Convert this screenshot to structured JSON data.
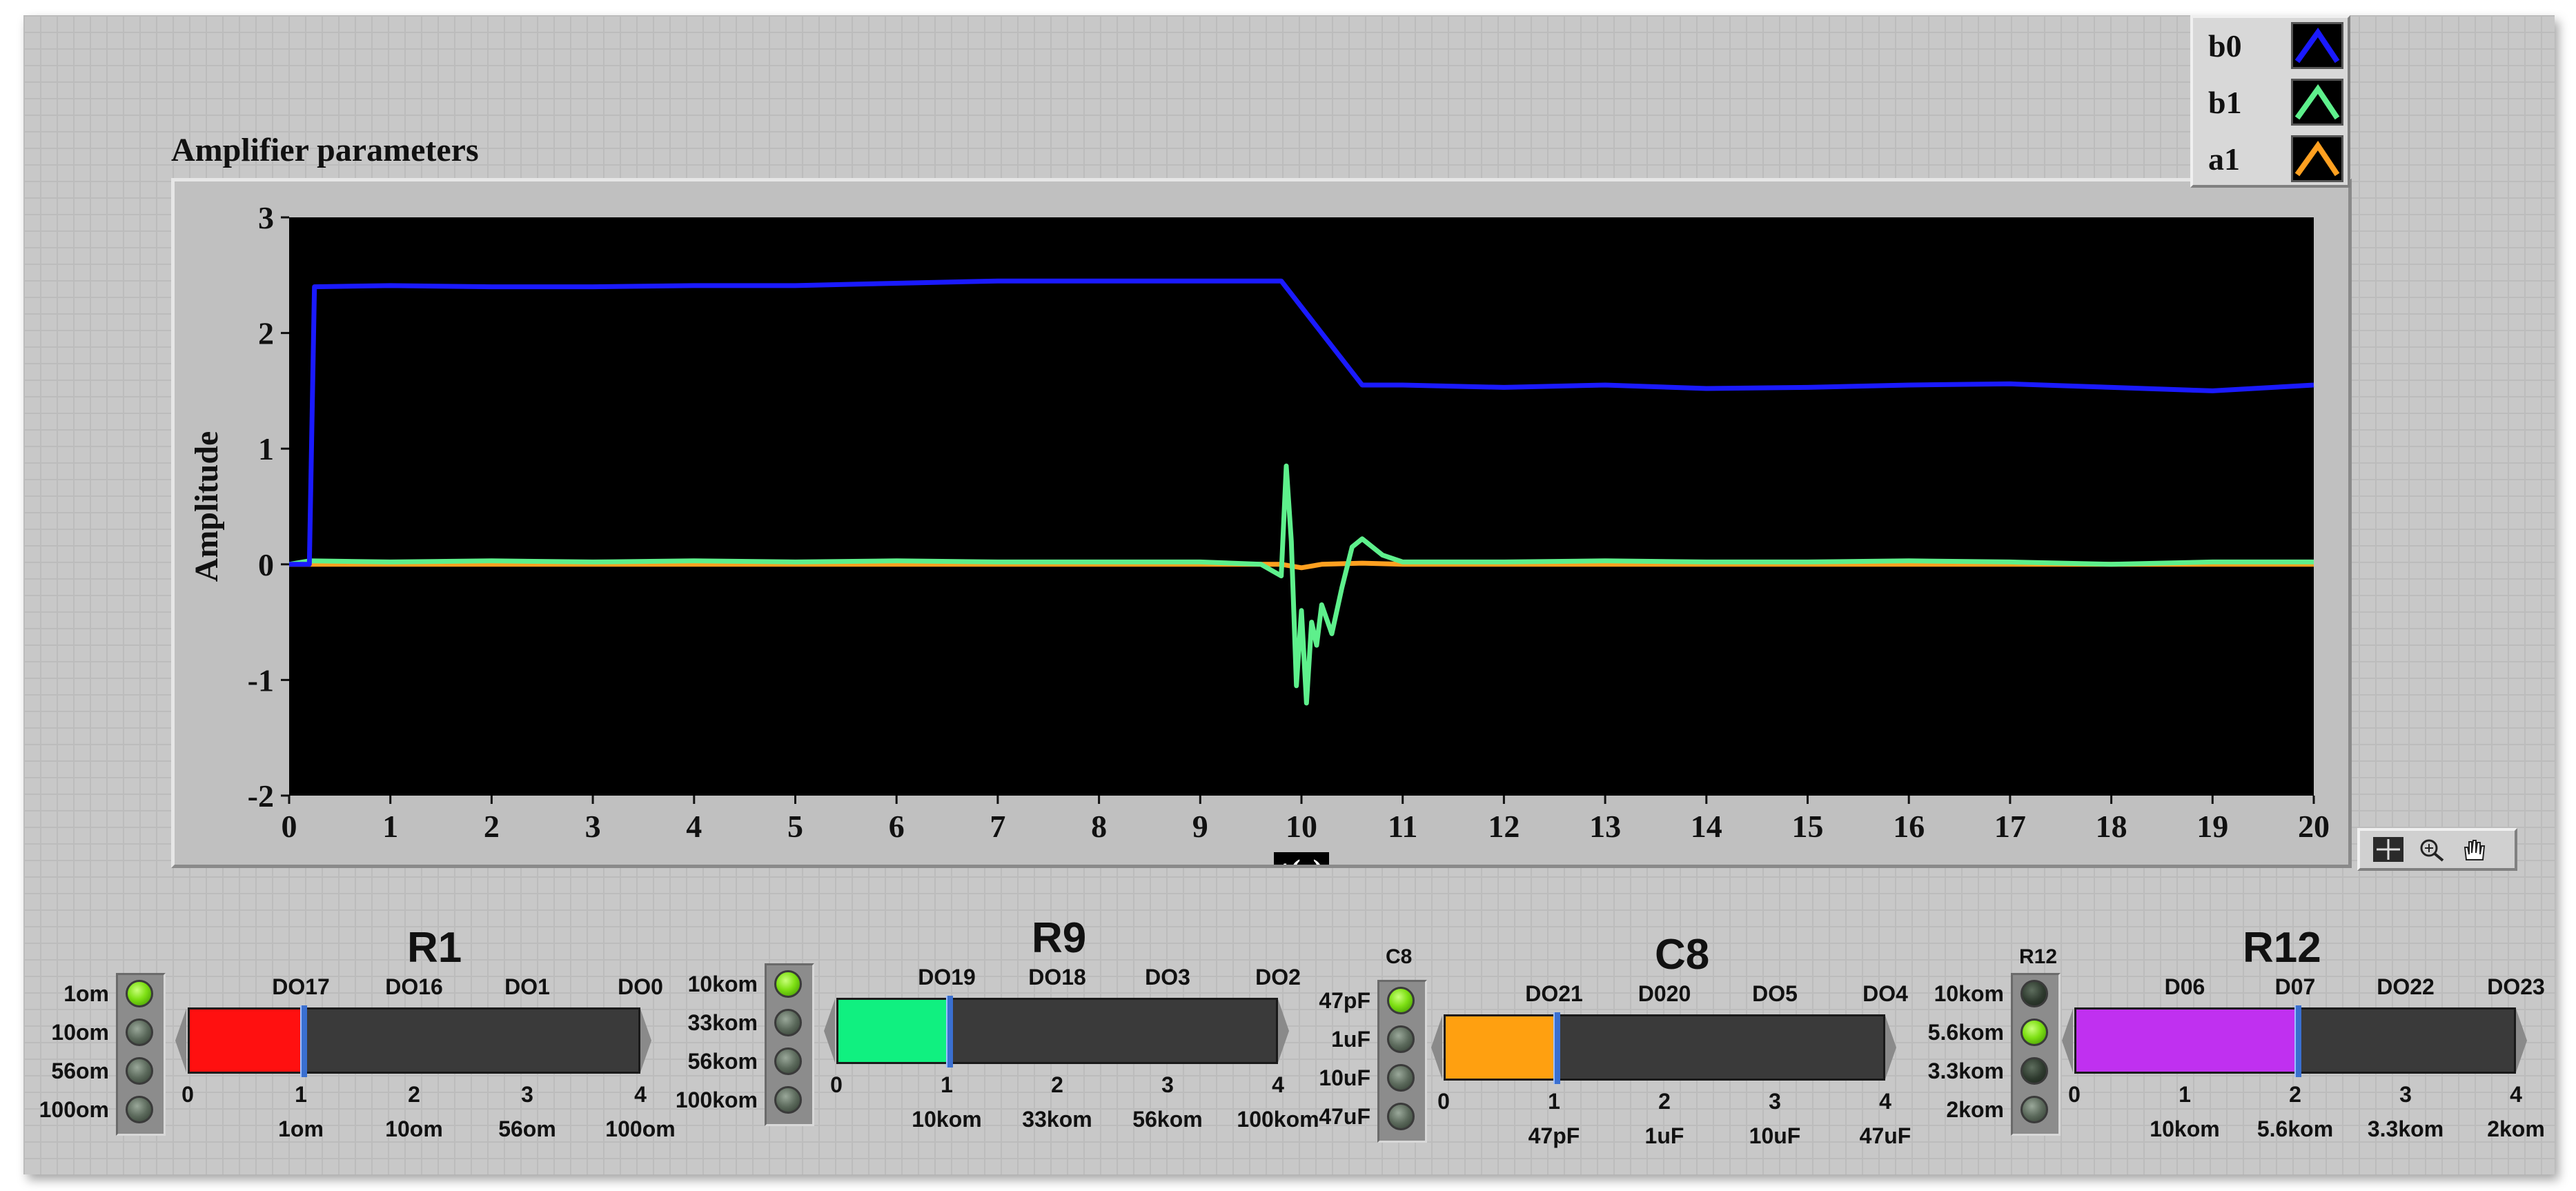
{
  "graph": {
    "title": "Amplifier parameters",
    "legend": [
      {
        "name": "b0",
        "color": "#1a1aff"
      },
      {
        "name": "b1",
        "color": "#5ef08c"
      },
      {
        "name": "a1",
        "color": "#ffa020"
      }
    ],
    "palette_icons": [
      "crosshair-icon",
      "zoom-icon",
      "pan-hand-icon"
    ]
  },
  "chart_data": {
    "type": "line",
    "title": "Amplifier parameters",
    "xlabel": "t(s)",
    "ylabel": "Amplitude",
    "xlim": [
      0,
      20
    ],
    "ylim": [
      -2,
      3
    ],
    "x_ticks": [
      "0",
      "1",
      "2",
      "3",
      "4",
      "5",
      "6",
      "7",
      "8",
      "9",
      "10",
      "11",
      "12",
      "13",
      "14",
      "15",
      "16",
      "17",
      "18",
      "19",
      "20"
    ],
    "y_ticks": [
      "3",
      "2",
      "1",
      "0",
      "-1",
      "-2"
    ],
    "grid": false,
    "legend_position": "top-right",
    "series": [
      {
        "name": "b0",
        "color": "#1a1aff",
        "x": [
          0,
          0.2,
          0.25,
          1,
          2,
          3,
          4,
          5,
          6,
          7,
          8,
          9,
          9.8,
          10.2,
          10.6,
          11,
          12,
          13,
          14,
          15,
          16,
          17,
          18,
          19,
          20
        ],
        "y": [
          0,
          0,
          2.4,
          2.41,
          2.4,
          2.4,
          2.41,
          2.41,
          2.43,
          2.45,
          2.45,
          2.45,
          2.45,
          2.0,
          1.55,
          1.55,
          1.53,
          1.55,
          1.52,
          1.53,
          1.55,
          1.56,
          1.53,
          1.5,
          1.55
        ]
      },
      {
        "name": "b1",
        "color": "#5ef08c",
        "x": [
          0,
          0.2,
          1,
          2,
          3,
          4,
          5,
          6,
          7,
          8,
          9,
          9.6,
          9.8,
          9.85,
          9.9,
          9.95,
          10.0,
          10.05,
          10.1,
          10.15,
          10.2,
          10.3,
          10.4,
          10.5,
          10.6,
          10.8,
          11,
          12,
          13,
          14,
          15,
          16,
          17,
          18,
          19,
          20
        ],
        "y": [
          0,
          0.03,
          0.02,
          0.03,
          0.02,
          0.03,
          0.02,
          0.03,
          0.02,
          0.02,
          0.02,
          0.0,
          -0.1,
          0.85,
          0.2,
          -1.05,
          -0.4,
          -1.2,
          -0.5,
          -0.7,
          -0.35,
          -0.6,
          -0.2,
          0.15,
          0.22,
          0.08,
          0.02,
          0.02,
          0.03,
          0.02,
          0.02,
          0.03,
          0.02,
          0.0,
          0.02,
          0.02
        ]
      },
      {
        "name": "a1",
        "color": "#ffa020",
        "x": [
          0,
          1,
          2,
          3,
          4,
          5,
          6,
          7,
          8,
          9,
          9.8,
          10.0,
          10.2,
          10.6,
          11,
          12,
          13,
          14,
          15,
          16,
          17,
          18,
          19,
          20
        ],
        "y": [
          0,
          0.0,
          0.0,
          0.0,
          0.0,
          0.0,
          0.0,
          0.0,
          0.0,
          0.0,
          0.0,
          -0.03,
          0.0,
          0.01,
          0.0,
          0.0,
          0.0,
          0.0,
          0.0,
          0.0,
          0.0,
          0.0,
          0.0,
          0.0
        ]
      }
    ]
  },
  "groups": [
    {
      "id": "r1",
      "title": "R1",
      "leds": [
        {
          "label": "1om",
          "state": "on"
        },
        {
          "label": "10om",
          "state": "off"
        },
        {
          "label": "56om",
          "state": "off"
        },
        {
          "label": "100om",
          "state": "off"
        }
      ],
      "top_labels": [
        "DO17",
        "DO16",
        "DO1",
        "DO0"
      ],
      "scale": [
        "0",
        "1",
        "2",
        "3",
        "4"
      ],
      "bottom_labels": [
        "1om",
        "10om",
        "56om",
        "100om"
      ],
      "value": 1,
      "max": 4,
      "fill_color": "#ff1010"
    },
    {
      "id": "r9",
      "title": "R9",
      "leds": [
        {
          "label": "10kom",
          "state": "on"
        },
        {
          "label": "33kom",
          "state": "off"
        },
        {
          "label": "56kom",
          "state": "off"
        },
        {
          "label": "100kom",
          "state": "off"
        }
      ],
      "top_labels": [
        "DO19",
        "DO18",
        "DO3",
        "DO2"
      ],
      "scale": [
        "0",
        "1",
        "2",
        "3",
        "4"
      ],
      "bottom_labels": [
        "10kom",
        "33kom",
        "56kom",
        "100kom"
      ],
      "value": 1,
      "max": 4,
      "fill_color": "#10f080"
    },
    {
      "id": "c8",
      "title": "C8",
      "small_title": "C8",
      "leds": [
        {
          "label": "47pF",
          "state": "on"
        },
        {
          "label": "1uF",
          "state": "off"
        },
        {
          "label": "10uF",
          "state": "off"
        },
        {
          "label": "47uF",
          "state": "off"
        }
      ],
      "top_labels": [
        "DO21",
        "D020",
        "DO5",
        "DO4"
      ],
      "scale": [
        "0",
        "1",
        "2",
        "3",
        "4"
      ],
      "bottom_labels": [
        "47pF",
        "1uF",
        "10uF",
        "47uF"
      ],
      "value": 1,
      "max": 4,
      "fill_color": "#ffa010"
    },
    {
      "id": "r12",
      "title": "R12",
      "small_title": "R12",
      "leds": [
        {
          "label": "10kom",
          "state": "dark"
        },
        {
          "label": "5.6kom",
          "state": "on"
        },
        {
          "label": "3.3kom",
          "state": "dark"
        },
        {
          "label": "2kom",
          "state": "off"
        }
      ],
      "top_labels": [
        "D06",
        "D07",
        "DO22",
        "DO23"
      ],
      "scale": [
        "0",
        "1",
        "2",
        "3",
        "4"
      ],
      "bottom_labels": [
        "10kom",
        "5.6kom",
        "3.3kom",
        "2kom"
      ],
      "value": 2,
      "max": 4,
      "fill_color": "#c030f0"
    }
  ]
}
